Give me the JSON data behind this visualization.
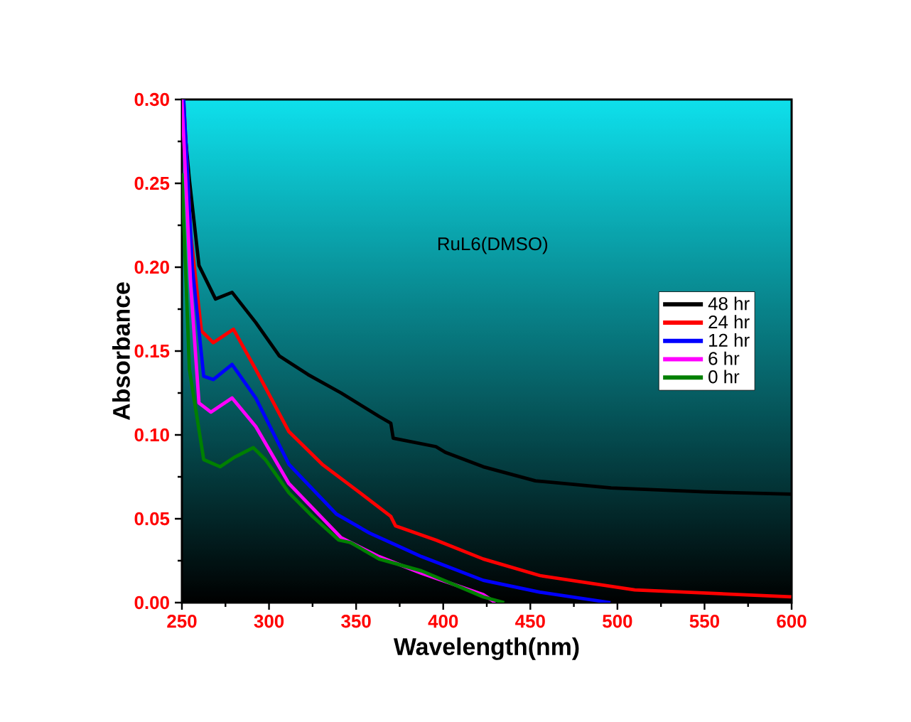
{
  "chart_data": {
    "type": "line",
    "xlabel": "Wavelength(nm)",
    "ylabel": "Absorbance",
    "annotations": [
      "RuL6(DMSO)"
    ],
    "xlim": [
      250,
      600
    ],
    "ylim": [
      0,
      0.3
    ],
    "xticks": [
      250,
      300,
      350,
      400,
      450,
      500,
      550,
      600
    ],
    "yticks": [
      {
        "value": 0,
        "label": "0.00"
      },
      {
        "value": 0.05,
        "label": "0.05"
      },
      {
        "value": 0.1,
        "label": "0.10"
      },
      {
        "value": 0.15,
        "label": "0.15"
      },
      {
        "value": 0.2,
        "label": "0.20"
      },
      {
        "value": 0.25,
        "label": "0.25"
      },
      {
        "value": 0.3,
        "label": "0.30"
      }
    ],
    "legend": "right",
    "grid": false,
    "line_style": "solid",
    "series": [
      {
        "name": "48 hr",
        "color": "#000000",
        "x": [
          250,
          254.3,
          259.8,
          269.3,
          278.8,
          292.4,
          306,
          322.4,
          341.4,
          363.2,
          369.9,
          371.3,
          395.8,
          401.2,
          423,
          452.9,
          496.4,
          550,
          599.8
        ],
        "values": [
          0.3,
          0.252,
          0.201,
          0.181,
          0.185,
          0.167,
          0.147,
          0.136,
          0.125,
          0.111,
          0.107,
          0.098,
          0.093,
          0.0896,
          0.081,
          0.0726,
          0.0684,
          0.066,
          0.0647
        ]
      },
      {
        "name": "24 hr",
        "color": "#ff0000",
        "x": [
          251,
          255,
          261.2,
          268,
          279.6,
          292.4,
          311.4,
          330.5,
          352.2,
          369.9,
          372.6,
          395.8,
          423,
          455.6,
          510,
          599.8
        ],
        "values": [
          0.3,
          0.22,
          0.162,
          0.155,
          0.163,
          0.139,
          0.102,
          0.0825,
          0.0655,
          0.0514,
          0.0458,
          0.0373,
          0.026,
          0.0161,
          0.0076,
          0.0034
        ]
      },
      {
        "name": "12 hr",
        "color": "#0000ff",
        "x": [
          251,
          256,
          262.5,
          268,
          278.8,
          292.4,
          311.4,
          338.7,
          357.7,
          387.6,
          423,
          455.6,
          496
        ],
        "values": [
          0.3,
          0.2,
          0.135,
          0.133,
          0.142,
          0.122,
          0.0825,
          0.0528,
          0.0415,
          0.0274,
          0.0133,
          0.0062,
          0
        ]
      },
      {
        "name": "6 hr",
        "color": "#ff00ff",
        "x": [
          250,
          255,
          259.8,
          266.6,
          278.8,
          292.4,
          311.4,
          341.4,
          363.2,
          387.6,
          423,
          430
        ],
        "values": [
          0.3,
          0.19,
          0.119,
          0.1136,
          0.122,
          0.105,
          0.071,
          0.0387,
          0.0274,
          0.0175,
          0.0048,
          0
        ]
      },
      {
        "name": "0 hr",
        "color": "#008000",
        "x": [
          250,
          254.3,
          262.5,
          272,
          280.2,
          291,
          297.9,
          311.4,
          325,
          340,
          346.8,
          363.2,
          387.6,
          423,
          435
        ],
        "values": [
          0.256,
          0.139,
          0.0853,
          0.081,
          0.0867,
          0.0924,
          0.0853,
          0.0655,
          0.0514,
          0.0373,
          0.0358,
          0.026,
          0.0189,
          0.0034,
          0
        ]
      }
    ]
  }
}
